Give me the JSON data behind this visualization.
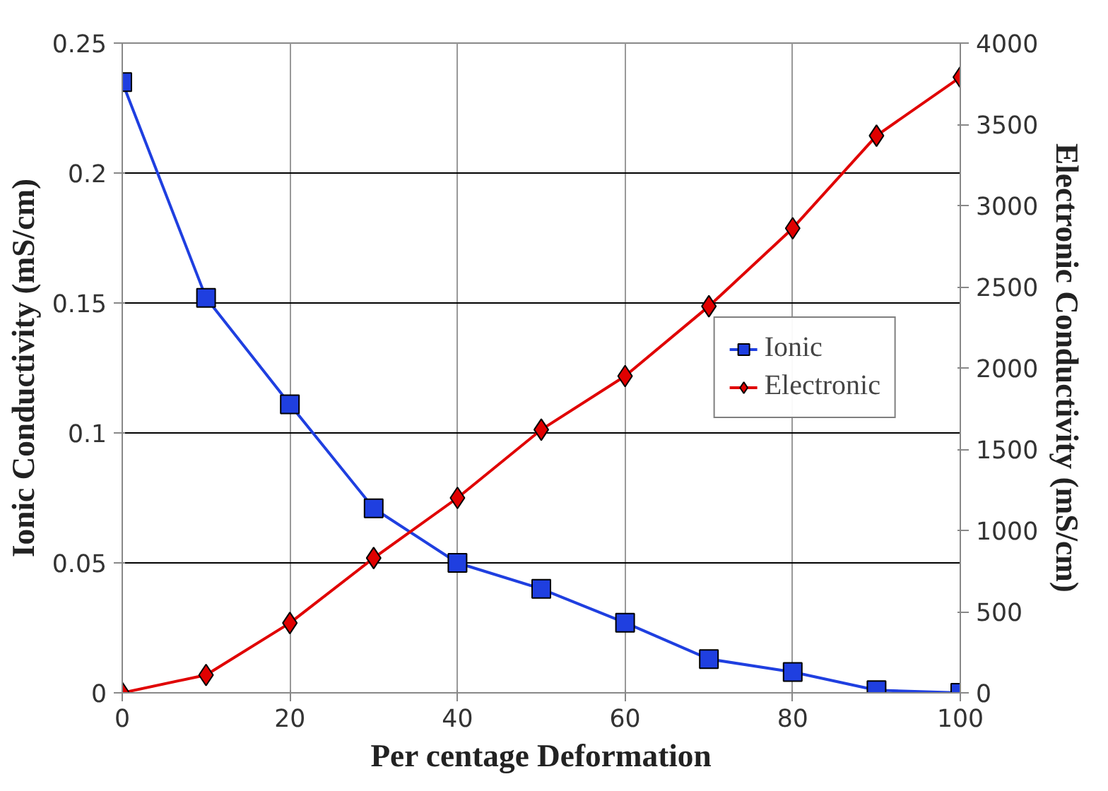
{
  "chart_data": {
    "type": "line",
    "xlabel": "Per centage Deformation",
    "ylabel": "Ionic Conductivity (mS/cm)",
    "y2label": "Electronic Conductivity (mS/cm)",
    "x": [
      0,
      10,
      20,
      30,
      40,
      50,
      60,
      70,
      80,
      90,
      100
    ],
    "series": [
      {
        "name": "Ionic",
        "color": "#1f3fe0",
        "marker": "square",
        "values": [
          0.235,
          0.152,
          0.111,
          0.071,
          0.05,
          0.04,
          0.027,
          0.013,
          0.008,
          0.001,
          0.0
        ]
      },
      {
        "name": "Electronic",
        "color": "#e00000",
        "marker": "diamond",
        "axis": "y2",
        "values": [
          0,
          110,
          430,
          830,
          1200,
          1620,
          1950,
          2380,
          2860,
          3430,
          3790
        ]
      }
    ],
    "xlim": [
      0,
      100
    ],
    "xticks": [
      0,
      20,
      40,
      60,
      80,
      100
    ],
    "ylim": [
      0,
      0.25
    ],
    "yticks": [
      0,
      0.05,
      0.1,
      0.15,
      0.2,
      0.25
    ],
    "y2lim": [
      0,
      4000
    ],
    "y2ticks": [
      0,
      500,
      1000,
      1500,
      2000,
      2500,
      3000,
      3500,
      4000
    ],
    "grid": true,
    "legend": "right",
    "line_style": "solid"
  }
}
